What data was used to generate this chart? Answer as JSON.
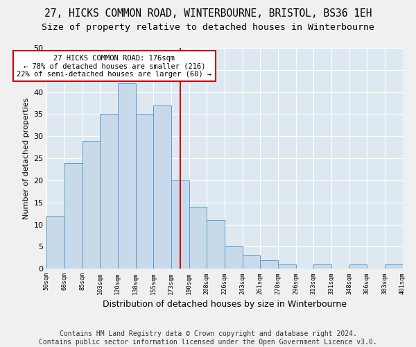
{
  "title1": "27, HICKS COMMON ROAD, WINTERBOURNE, BRISTOL, BS36 1EH",
  "title2": "Size of property relative to detached houses in Winterbourne",
  "xlabel": "Distribution of detached houses by size in Winterbourne",
  "ylabel": "Number of detached properties",
  "bin_labels": [
    "50sqm",
    "68sqm",
    "85sqm",
    "103sqm",
    "120sqm",
    "138sqm",
    "155sqm",
    "173sqm",
    "190sqm",
    "208sqm",
    "226sqm",
    "243sqm",
    "261sqm",
    "278sqm",
    "296sqm",
    "313sqm",
    "331sqm",
    "348sqm",
    "366sqm",
    "383sqm",
    "401sqm"
  ],
  "bar_heights": [
    12,
    24,
    29,
    35,
    42,
    35,
    37,
    20,
    14,
    11,
    5,
    3,
    2,
    1,
    0,
    1,
    0,
    1,
    0,
    1
  ],
  "bar_color": "#c8daea",
  "bar_edge_color": "#5b9bd5",
  "property_line_x": 7.5,
  "property_line_label": "27 HICKS COMMON ROAD: 176sqm",
  "annotation_line1": "← 78% of detached houses are smaller (216)",
  "annotation_line2": "22% of semi-detached houses are larger (60) →",
  "annotation_box_color": "#ffffff",
  "annotation_box_edge": "#cc0000",
  "vline_color": "#cc0000",
  "ylim": [
    0,
    50
  ],
  "yticks": [
    0,
    5,
    10,
    15,
    20,
    25,
    30,
    35,
    40,
    45,
    50
  ],
  "footer1": "Contains HM Land Registry data © Crown copyright and database right 2024.",
  "footer2": "Contains public sector information licensed under the Open Government Licence v3.0.",
  "bg_color": "#dde8f0",
  "grid_color": "#ffffff",
  "title1_fontsize": 10.5,
  "title2_fontsize": 9.5,
  "xlabel_fontsize": 9,
  "ylabel_fontsize": 8,
  "footer_fontsize": 7
}
